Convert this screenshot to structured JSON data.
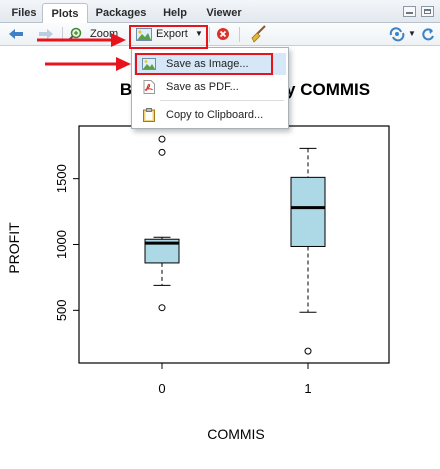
{
  "tabs": [
    "Files",
    "Plots",
    "Packages",
    "Help",
    "Viewer"
  ],
  "active_tab": "Plots",
  "toolbar": {
    "zoom_label": "Zoom",
    "export_label": "Export"
  },
  "export_menu": {
    "items": [
      "Save as Image...",
      "Save as PDF...",
      "Copy to Clipboard..."
    ],
    "highlighted": "Save as Image..."
  },
  "colors": {
    "box_fill": "#add8e6",
    "annotation_red": "#e8141c",
    "menu_highlight": "#d6e8f7"
  },
  "chart_data": {
    "type": "boxplot",
    "title": "Boxplot of PROFIT by COMMIS",
    "xlabel": "COMMIS",
    "ylabel": "PROFIT",
    "categories": [
      "0",
      "1"
    ],
    "y_ticks": [
      500,
      1000,
      1500
    ],
    "ylim": [
      100,
      1900
    ],
    "boxes": [
      {
        "category": "0",
        "whisker_low": 690,
        "q1": 860,
        "median": 1010,
        "q3": 1040,
        "whisker_high": 1055,
        "outliers": [
          520,
          1700,
          1800
        ]
      },
      {
        "category": "1",
        "whisker_low": 485,
        "q1": 985,
        "median": 1280,
        "q3": 1510,
        "whisker_high": 1730,
        "outliers": [
          190
        ]
      }
    ]
  }
}
